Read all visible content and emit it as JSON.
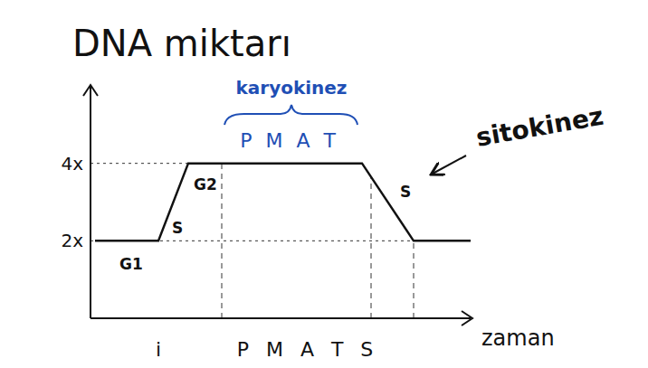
{
  "chart_data": {
    "type": "line",
    "title": "DNA miktarı",
    "xlabel": "zaman",
    "x": [
      0.5,
      7.5,
      10.8,
      30,
      35.7,
      42
    ],
    "values": [
      2,
      2,
      4,
      4,
      2,
      2
    ],
    "color": "#111111",
    "xlim": [
      0,
      42
    ],
    "ylim": [
      0,
      6
    ],
    "yticks": [
      {
        "value": 2,
        "label": "2x"
      },
      {
        "value": 4,
        "label": "4x"
      }
    ],
    "tick_labels": "y",
    "grid": false,
    "phase_boundaries": [
      14.5,
      31,
      35.7
    ],
    "phase_labels": [
      "G1",
      "S",
      "G2"
    ],
    "annotations": [
      "P M A T",
      "karyokinez",
      "sitokinez",
      "S"
    ],
    "x_phase_labels": [
      "i",
      "P M A T S"
    ]
  }
}
